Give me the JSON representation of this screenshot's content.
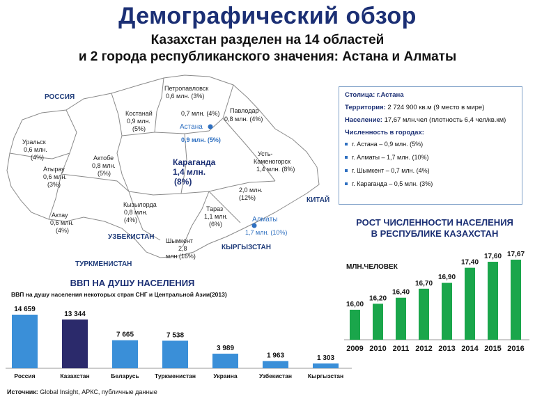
{
  "header": {
    "title": "Демографический обзор",
    "subtitle_line1": "Казахстан разделен на 14 областей",
    "subtitle_line2": "и 2 города республиканского значения: Астана и Алматы"
  },
  "map": {
    "countries": {
      "russia": "РОССИЯ",
      "china": "КИТАЙ",
      "uzbekistan": "УЗБЕКИСТАН",
      "turkmenistan": "ТУРКМЕНИСТАН",
      "kyrgyzstan": "КЫРГЫЗСТАН"
    },
    "regions": {
      "petropavlovsk": [
        "Петропавловск",
        "0,6 млн. (3%)"
      ],
      "kostanai": [
        "Костанай",
        "0,9 млн.",
        "(5%)"
      ],
      "akmola": [
        "0,7 млн. (4%)"
      ],
      "pavlodar": [
        "Павлодар",
        "0,8 млн. (4%)"
      ],
      "astana": [
        "Астана",
        "0,9 млн. (5%)"
      ],
      "uralsk": [
        "Уральск",
        "0,6 млн.",
        "(4%)"
      ],
      "atyrau": [
        "Атырау",
        "0,6 млн.",
        "(3%)"
      ],
      "aktobe": [
        "Актобе",
        "0,8 млн.",
        "(5%)"
      ],
      "karaganda": [
        "Караганда",
        "1,4 млн.",
        "(8%)"
      ],
      "ust_kamenogorsk": [
        "Усть-",
        "Каменогорск",
        "1,4 млн. (8%)"
      ],
      "kyzylorda": [
        "Кызылорда",
        "0,8 млн.",
        "(4%)"
      ],
      "almaty_region": [
        "2,0 млн.",
        "(12%)"
      ],
      "aktau": [
        "Актау",
        "0,6 млн.",
        "(4%)"
      ],
      "taraz": [
        "Тараз",
        "1,1 млн.",
        "(6%)"
      ],
      "almaty": [
        "Алматы",
        "1,7 млн. (10%)"
      ],
      "shymkent": [
        "Шымкент",
        "2,8",
        "млн.(16%)"
      ]
    },
    "colors": {
      "land": "#ffffff",
      "border": "#8a8a8a",
      "city": "#2e6fc0",
      "city_text": "#2e6fc0"
    }
  },
  "info": {
    "capital_label": "Столица:",
    "capital_value": "г.Астана",
    "territory_label": "Территория:",
    "territory_value": "2 724 900 кв.м (9 место в мире)",
    "population_label": "Население:",
    "population_value": "17,67 млн.чел (плотность 6,4 чел/кв.км)",
    "cities_label": "Численность в городах:",
    "cities": [
      "г. Астана – 0,9 млн. (5%)",
      "г. Алматы – 1,7 млн. (10%)",
      "г. Шымкент – 0,7 млн. (4%)",
      "г. Караганда – 0,5 млн. (3%)"
    ]
  },
  "growth": {
    "title_line1": "РОСТ ЧИСЛЕННОСТИ НАСЕЛЕНИЯ",
    "title_line2": "В РЕСПУБЛИКЕ КАЗАХСТАН",
    "unit": "МЛН.ЧЕЛОВЕК"
  },
  "gdp": {
    "title": "ВВП НА ДУШУ НАСЕЛЕНИЯ",
    "subtitle": "ВВП на душу населения некоторых стран СНГ и Центральной Азии(2013)"
  },
  "source": {
    "label": "Источник:",
    "text": "Global Insight, АРКС, публичные данные"
  },
  "chart_data": [
    {
      "type": "bar",
      "id": "population-growth",
      "categories": [
        "2009",
        "2010",
        "2011",
        "2012",
        "2013",
        "2014",
        "2015",
        "2016"
      ],
      "values": [
        16.0,
        16.2,
        16.4,
        16.7,
        16.9,
        17.4,
        17.6,
        17.67
      ],
      "labels": [
        "16,00",
        "16,20",
        "16,40",
        "16,70",
        "16,90",
        "17,40",
        "17,60",
        "17,67"
      ],
      "title": "РОСТ ЧИСЛЕННОСТИ НАСЕЛЕНИЯ В РЕСПУБЛИКЕ КАЗАХСТАН",
      "ylabel": "МЛН.ЧЕЛОВЕК",
      "ylim": [
        15.0,
        17.67
      ],
      "color": "#1aa64b",
      "grid": false
    },
    {
      "type": "bar",
      "id": "gdp-per-capita",
      "categories": [
        "Россия",
        "Казахстан",
        "Беларусь",
        "Туркменистан",
        "Украина",
        "Узбекистан",
        "Кыргызстан"
      ],
      "values": [
        14659,
        13344,
        7665,
        7538,
        3989,
        1963,
        1303
      ],
      "labels": [
        "14 659",
        "13 344",
        "7 665",
        "7 538",
        "3 989",
        "1 963",
        "1 303"
      ],
      "title": "ВВП НА ДУШУ НАСЕЛЕНИЯ",
      "ylim": [
        0,
        14659
      ],
      "colors": [
        "#3a8fd8",
        "#2b2a6b",
        "#3a8fd8",
        "#3a8fd8",
        "#3a8fd8",
        "#3a8fd8",
        "#3a8fd8"
      ],
      "grid": false
    }
  ]
}
